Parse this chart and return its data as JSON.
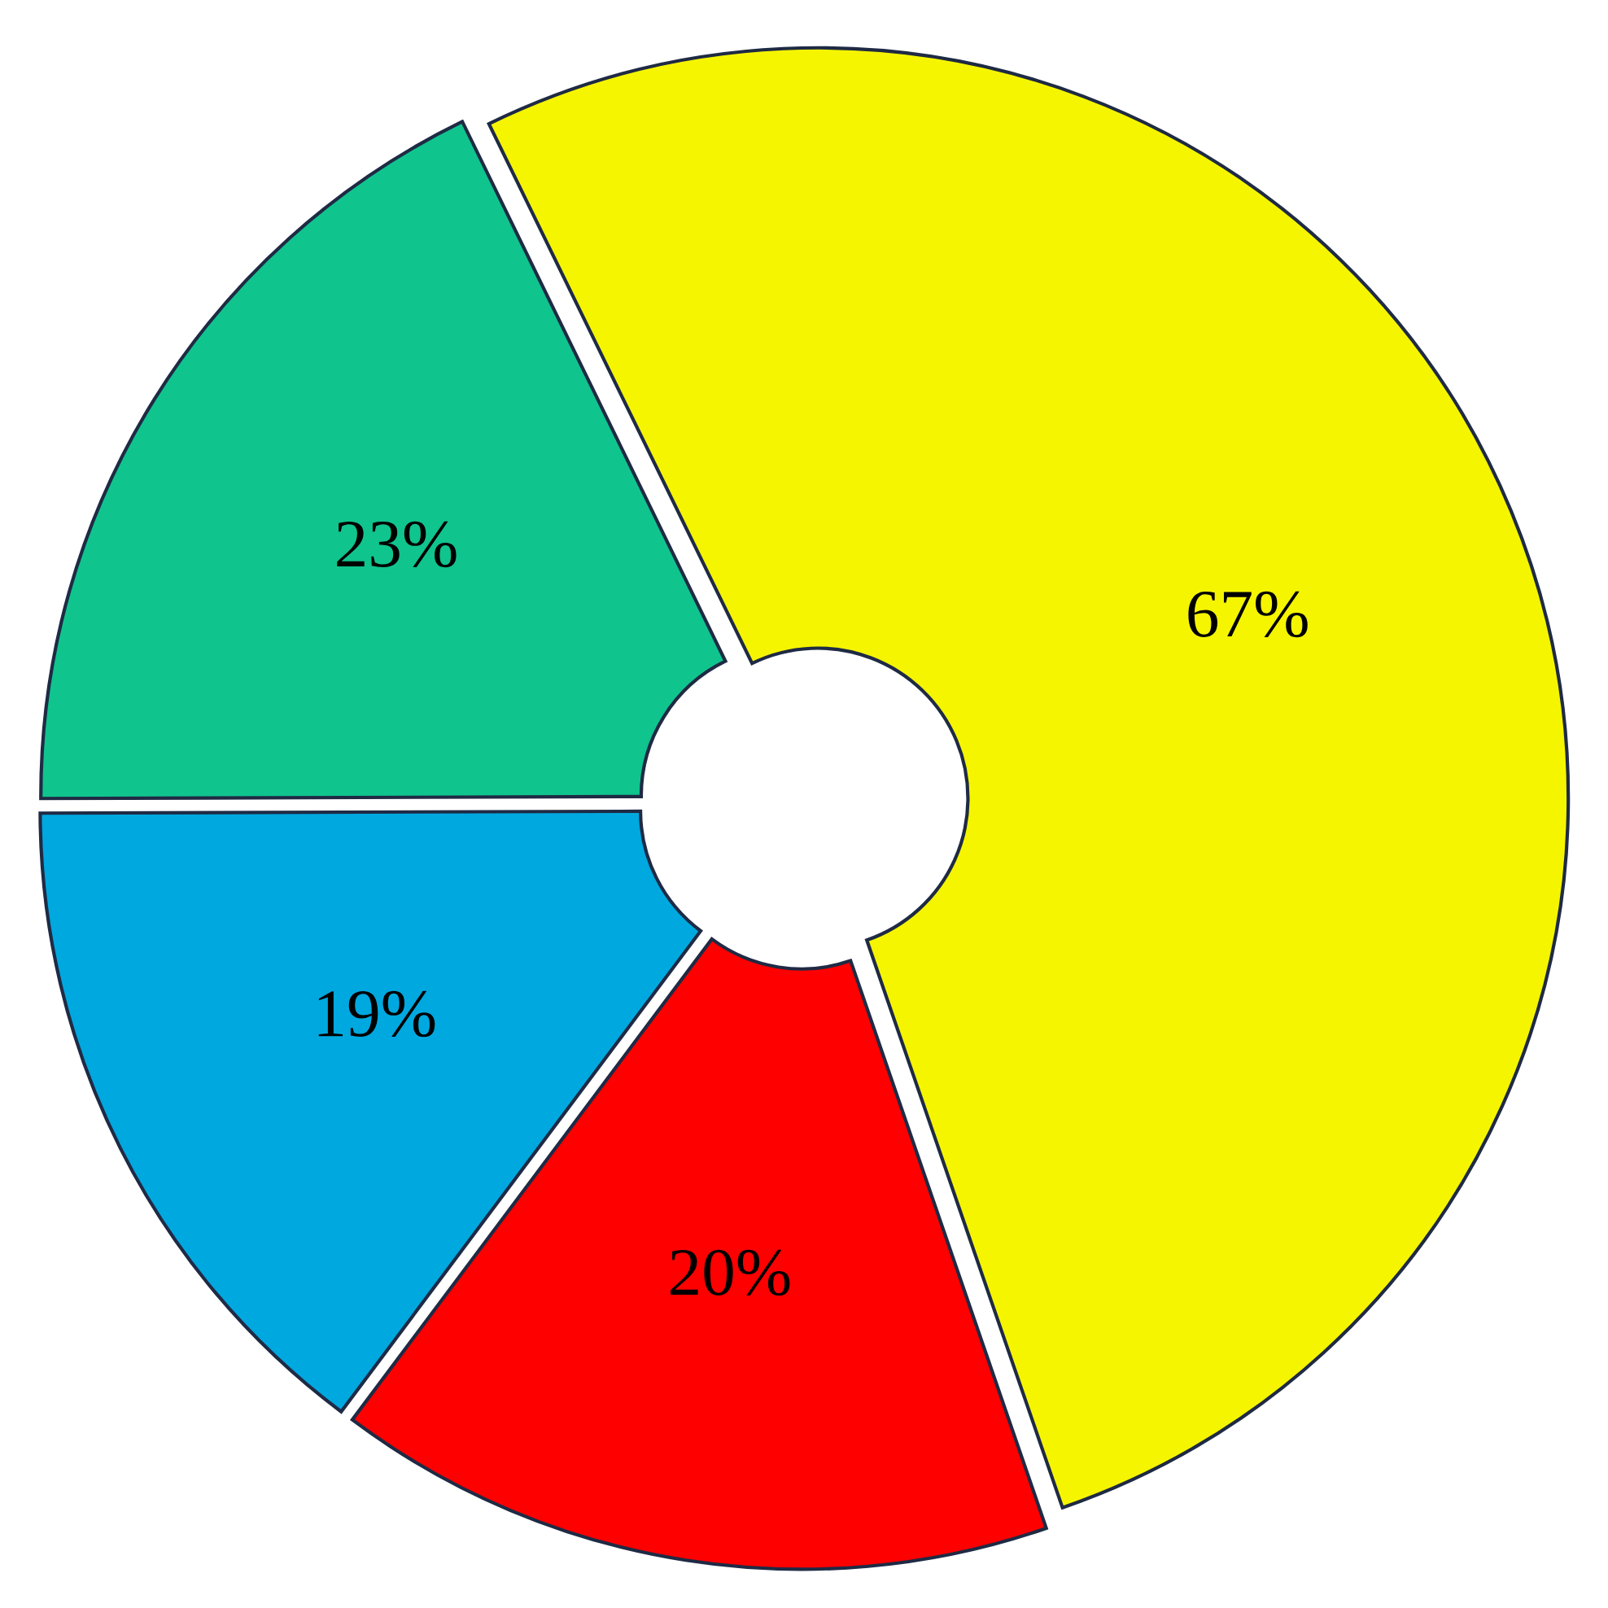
{
  "chart_data": {
    "type": "donut",
    "categories": [
      null,
      null,
      null,
      null
    ],
    "values": [
      67,
      20,
      19,
      23
    ],
    "colors": [
      "#f5f500",
      "#ff0000",
      "#00a8e0",
      "#10c48e"
    ],
    "value_labels": [
      "67%",
      "20%",
      "19%",
      "23%"
    ]
  }
}
